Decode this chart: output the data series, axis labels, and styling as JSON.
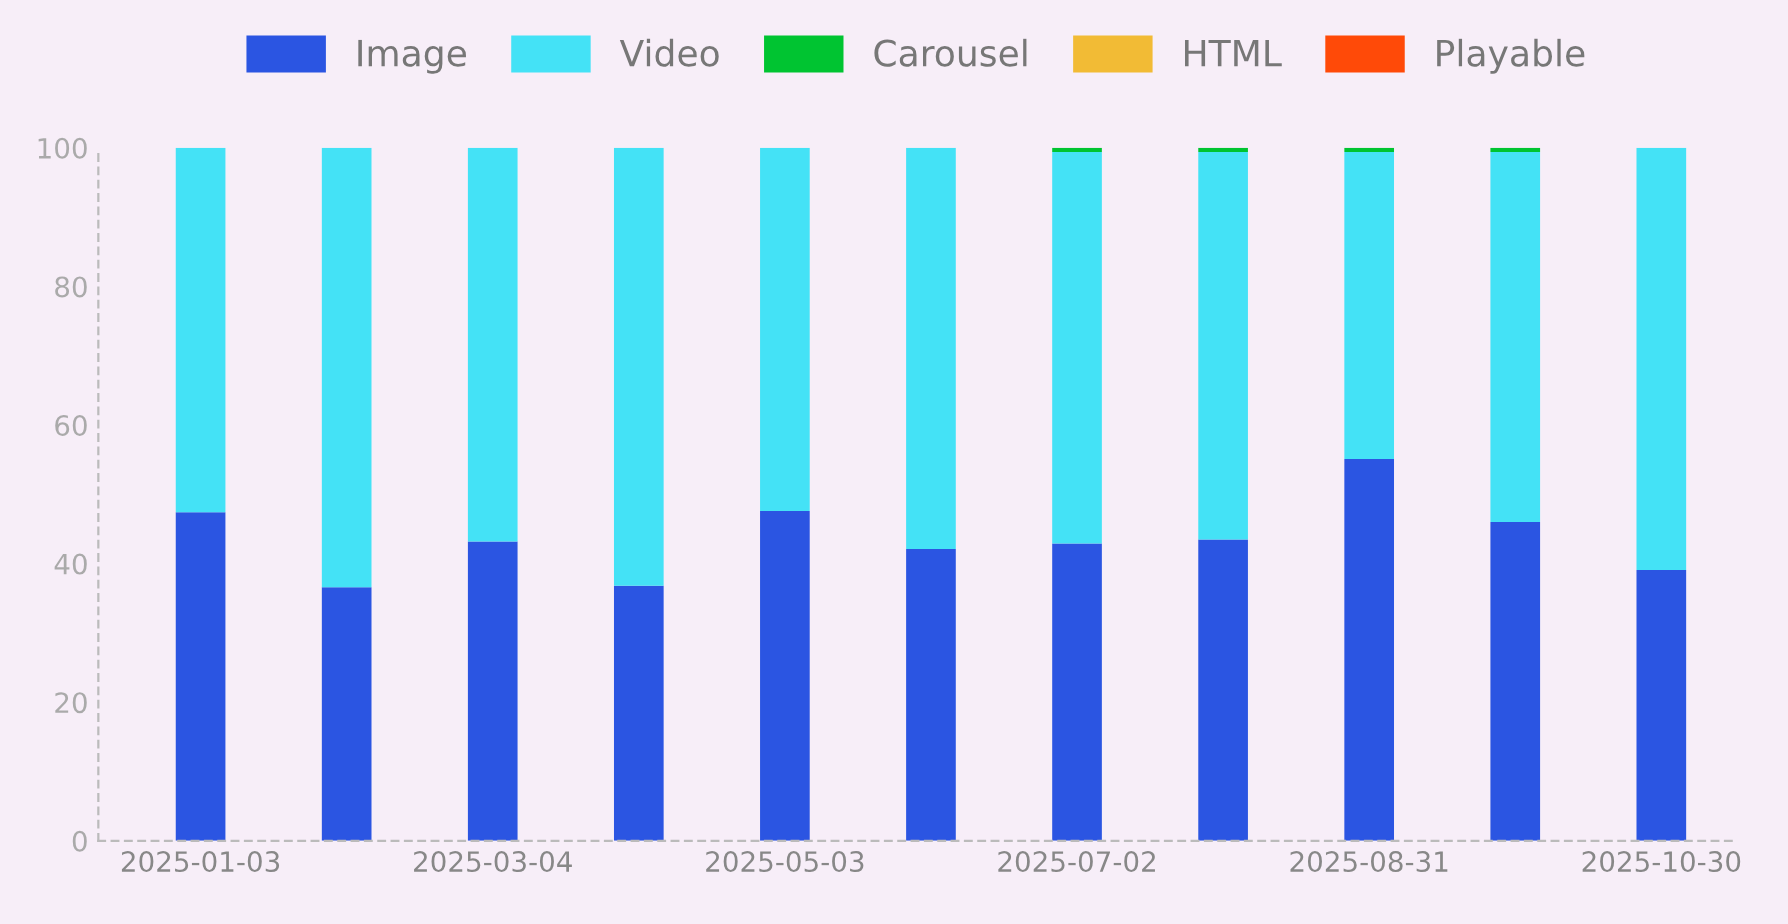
{
  "chart_data": {
    "type": "bar",
    "stacked": true,
    "categories": [
      "2025-01-03",
      null,
      "2025-03-04",
      null,
      "2025-05-03",
      null,
      "2025-07-02",
      null,
      "2025-08-31",
      null,
      "2025-10-30"
    ],
    "series": [
      {
        "name": "Image",
        "color": "#2b55e2",
        "values": [
          47.4,
          36.6,
          43.2,
          36.8,
          47.6,
          42.1,
          42.9,
          43.5,
          55.1,
          46.0,
          39.1
        ]
      },
      {
        "name": "Video",
        "color": "#44e2f6",
        "values": [
          52.6,
          63.4,
          56.8,
          63.2,
          52.4,
          57.9,
          56.5,
          55.9,
          44.3,
          53.4,
          60.9
        ]
      },
      {
        "name": "Carousel",
        "color": "#00c431",
        "values": [
          null,
          null,
          null,
          null,
          null,
          null,
          0.6,
          0.6,
          0.6,
          0.6,
          null
        ]
      },
      {
        "name": "HTML",
        "color": "#f2bb35",
        "values": [
          null,
          null,
          null,
          null,
          null,
          null,
          null,
          null,
          null,
          null,
          null
        ]
      },
      {
        "name": "Playable",
        "color": "#ff4a08",
        "values": [
          null,
          null,
          null,
          null,
          null,
          null,
          null,
          null,
          null,
          null,
          null
        ]
      }
    ],
    "ylim": [
      0,
      100
    ],
    "yticks": [
      0,
      20,
      40,
      60,
      80,
      100
    ],
    "grid": false,
    "legend": "top"
  }
}
